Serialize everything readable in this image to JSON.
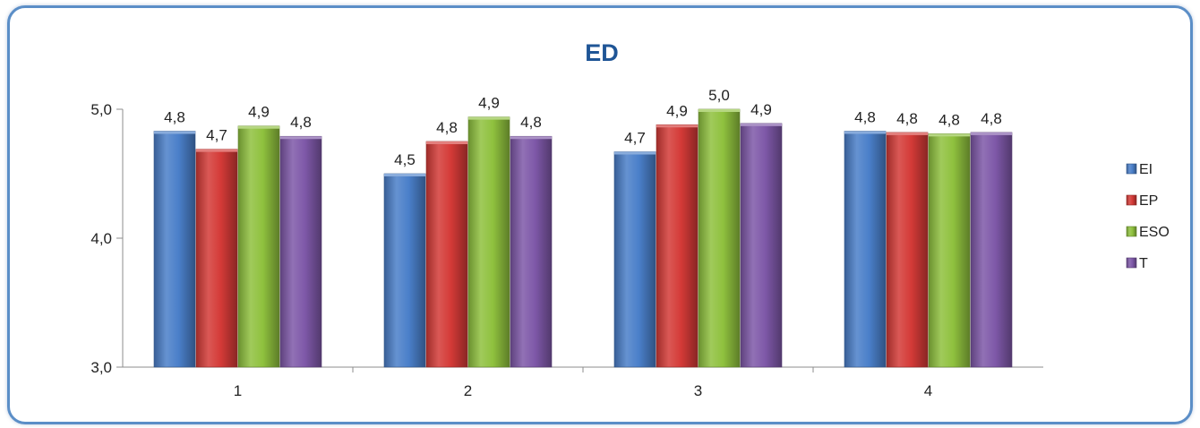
{
  "chart_data": {
    "type": "bar",
    "title": "ED",
    "categories": [
      "1",
      "2",
      "3",
      "4"
    ],
    "series": [
      {
        "name": "EI",
        "color": "#4a7fc9",
        "values": [
          4.83,
          4.5,
          4.67,
          4.83
        ],
        "labels": [
          "4,8",
          "4,5",
          "4,7",
          "4,8"
        ]
      },
      {
        "name": "EP",
        "color": "#d43a37",
        "values": [
          4.69,
          4.75,
          4.88,
          4.82
        ],
        "labels": [
          "4,7",
          "4,8",
          "4,9",
          "4,8"
        ]
      },
      {
        "name": "ESO",
        "color": "#8fc13e",
        "values": [
          4.87,
          4.94,
          5.0,
          4.81
        ],
        "labels": [
          "4,9",
          "4,9",
          "5,0",
          "4,8"
        ]
      },
      {
        "name": "T",
        "color": "#7e58a8",
        "values": [
          4.79,
          4.79,
          4.89,
          4.82
        ],
        "labels": [
          "4,8",
          "4,8",
          "4,9",
          "4,8"
        ]
      }
    ],
    "ylim": [
      3.0,
      5.0
    ],
    "yticks": [
      {
        "value": 3.0,
        "label": "3,0"
      },
      {
        "value": 4.0,
        "label": "4,0"
      },
      {
        "value": 5.0,
        "label": "5,0"
      }
    ],
    "xlabel": "",
    "ylabel": "",
    "grid": false,
    "legend_position": "right"
  }
}
